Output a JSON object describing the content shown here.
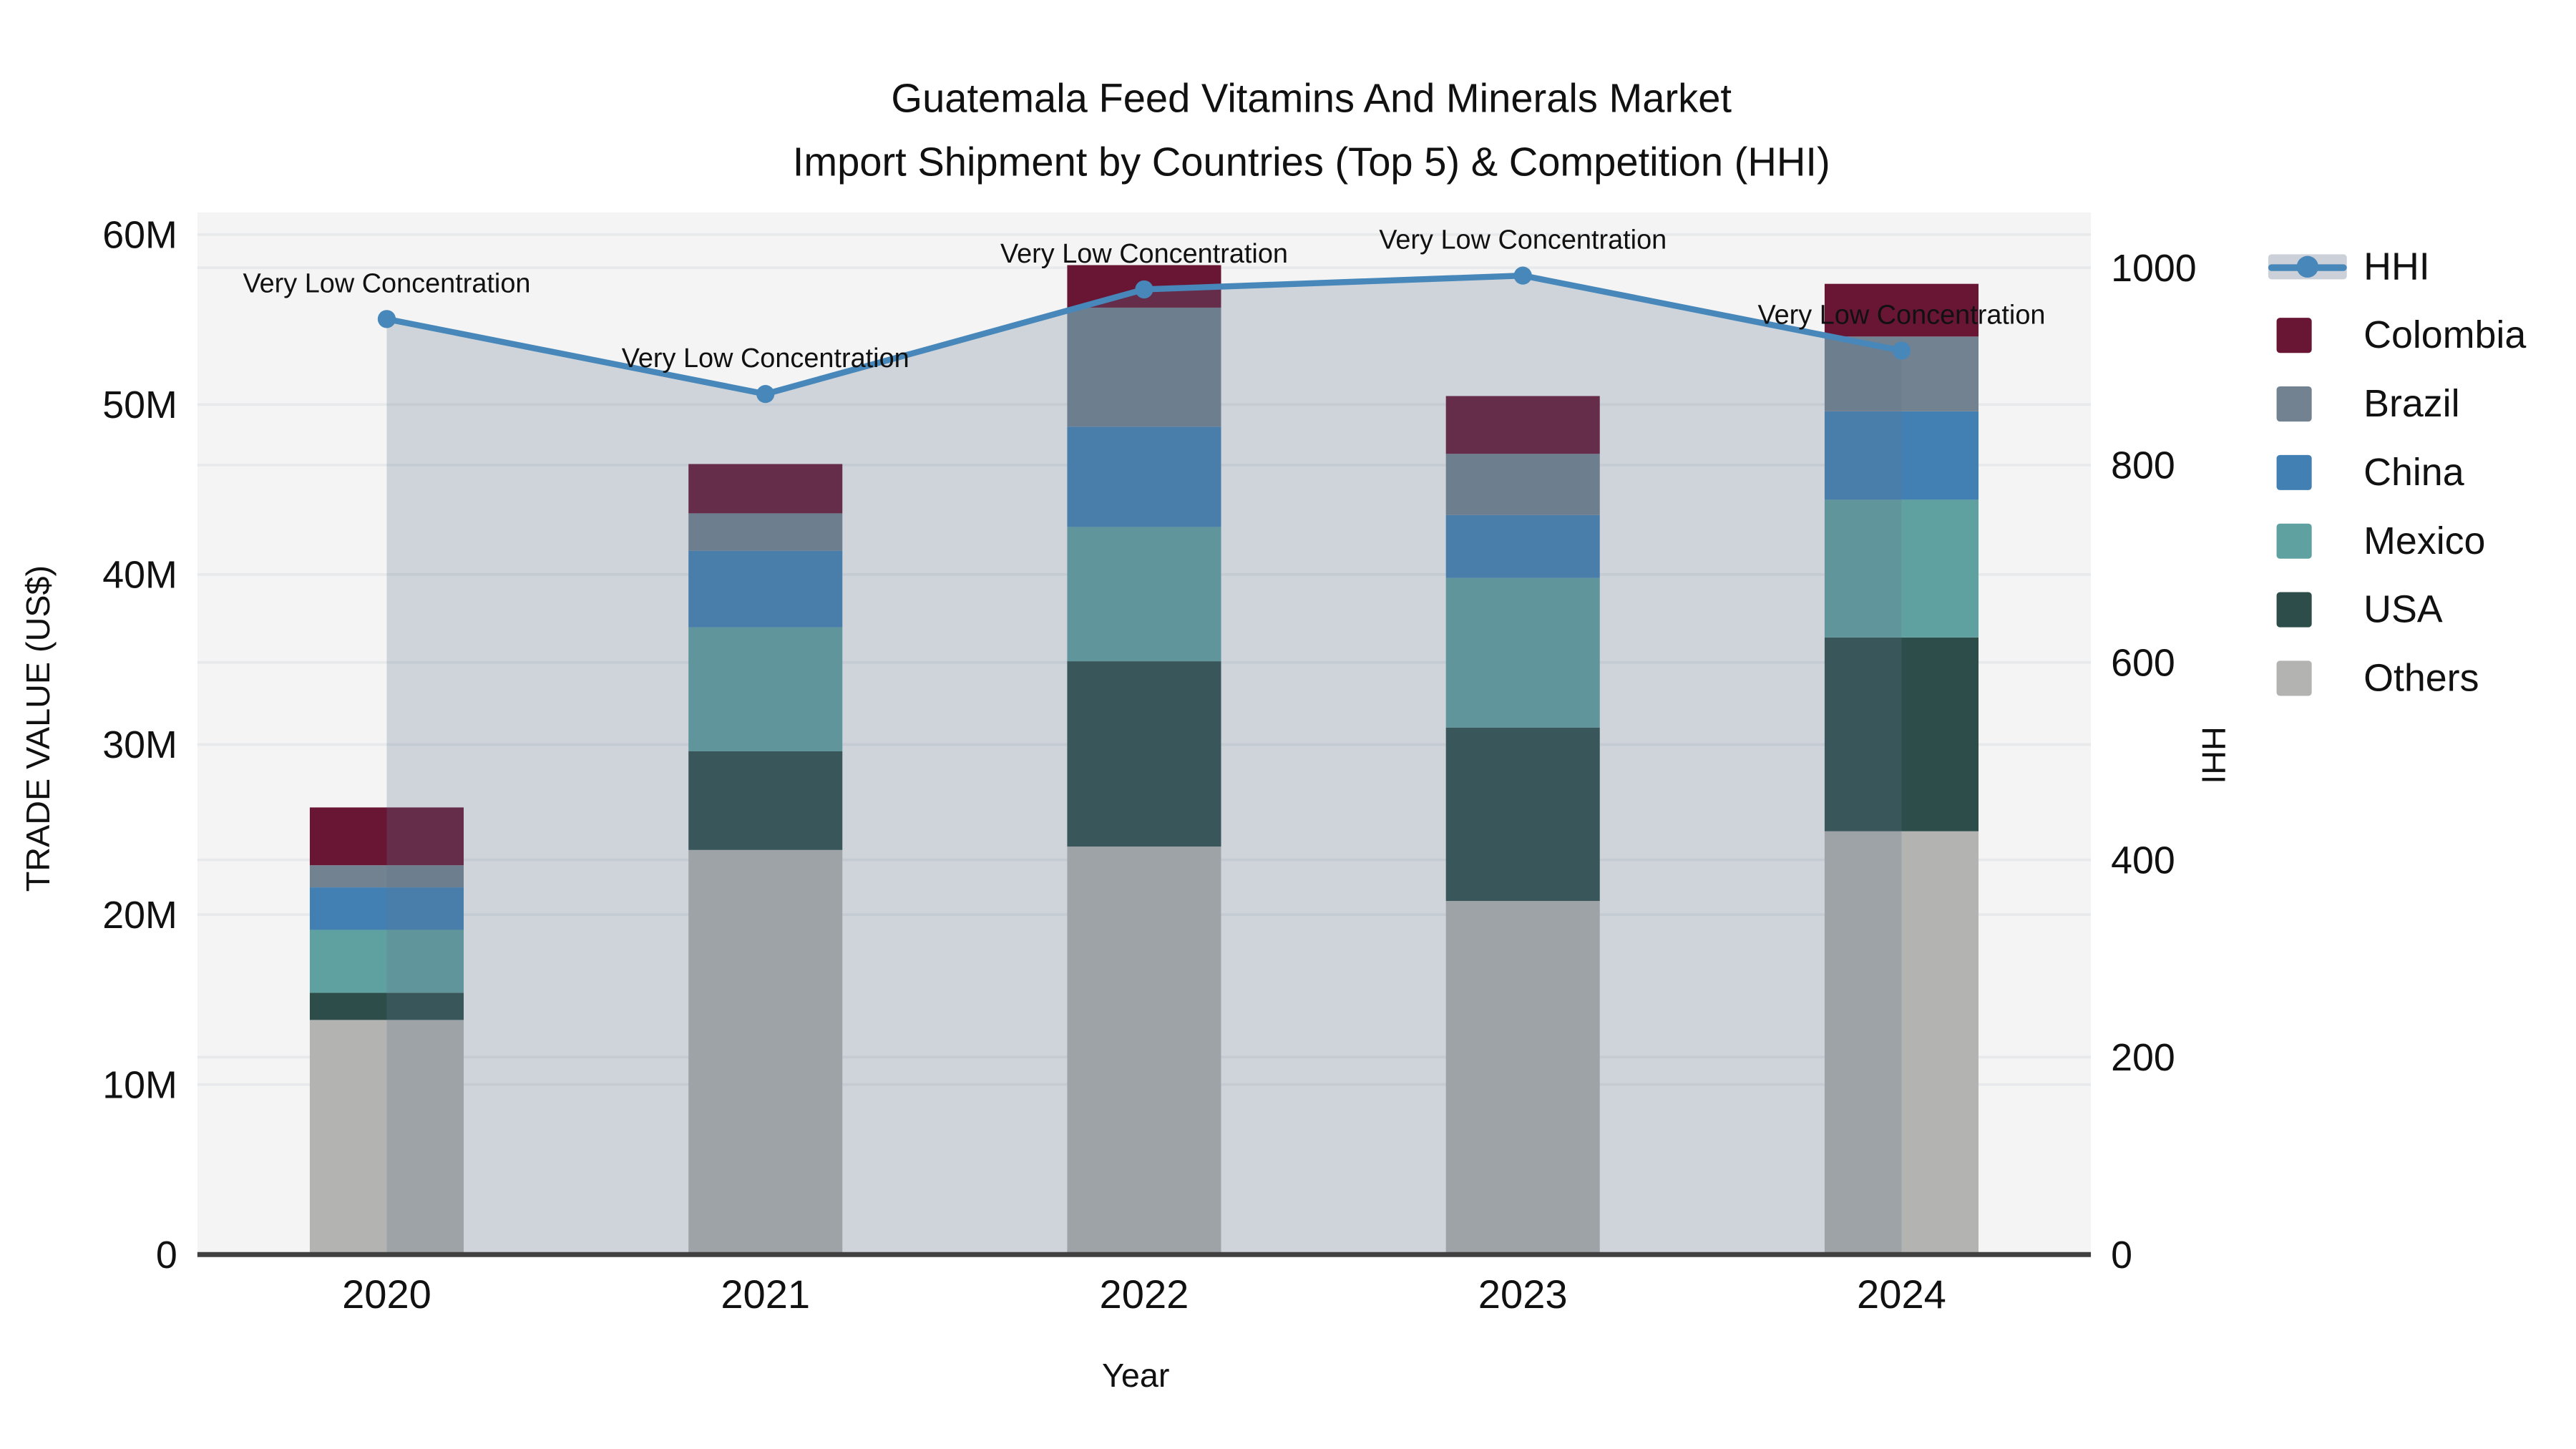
{
  "title": {
    "line1": "Guatemala Feed Vitamins And Minerals Market",
    "line2": "Import Shipment by Countries (Top 5) & Competition (HHI)"
  },
  "axes": {
    "left": {
      "title": "TRADE VALUE (US$)",
      "tick_values": [
        0,
        10,
        20,
        30,
        40,
        50,
        60
      ],
      "tick_labels": [
        "0",
        "10M",
        "20M",
        "30M",
        "40M",
        "50M",
        "60M"
      ],
      "max": 61.3
    },
    "right": {
      "title": "HHI",
      "tick_values": [
        0,
        200,
        400,
        600,
        800,
        1000
      ],
      "tick_labels": [
        "0",
        "200",
        "400",
        "600",
        "800",
        "1000"
      ],
      "max": 1056
    },
    "x": {
      "title": "Year",
      "categories": [
        "2020",
        "2021",
        "2022",
        "2023",
        "2024"
      ]
    }
  },
  "legend": {
    "items": [
      {
        "label": "HHI",
        "type": "line",
        "color": "#4787ba",
        "band": "#ccd1d9"
      },
      {
        "label": "Colombia",
        "type": "swatch",
        "color": "#691634"
      },
      {
        "label": "Brazil",
        "type": "swatch",
        "color": "#728291"
      },
      {
        "label": "China",
        "type": "swatch",
        "color": "#4280b4"
      },
      {
        "label": "Mexico",
        "type": "swatch",
        "color": "#5fa1a1"
      },
      {
        "label": "USA",
        "type": "swatch",
        "color": "#2d4d4a"
      },
      {
        "label": "Others",
        "type": "swatch",
        "color": "#b3b3b1"
      }
    ]
  },
  "chart_data": {
    "type": "bar",
    "subtype": "stacked-bars-with-line",
    "title": "Guatemala Feed Vitamins And Minerals Market Import Shipment by Countries (Top 5) & Competition (HHI)",
    "xlabel": "Year",
    "ylabel_left": "TRADE VALUE (US$)",
    "ylabel_right": "HHI",
    "categories": [
      "2020",
      "2021",
      "2022",
      "2023",
      "2024"
    ],
    "bar_unit": "M US$",
    "stack_order_bottom_to_top": [
      "Others",
      "USA",
      "Mexico",
      "China",
      "Brazil",
      "Colombia"
    ],
    "series": [
      {
        "name": "Others",
        "color": "#b3b3b1",
        "values": [
          13.8,
          23.8,
          24.0,
          20.8,
          24.9
        ]
      },
      {
        "name": "USA",
        "color": "#2d4d4a",
        "values": [
          1.6,
          5.8,
          10.9,
          10.2,
          11.4
        ]
      },
      {
        "name": "Mexico",
        "color": "#5fa1a1",
        "values": [
          3.7,
          7.3,
          7.9,
          8.8,
          8.1
        ]
      },
      {
        "name": "China",
        "color": "#4280b4",
        "values": [
          2.5,
          4.5,
          5.9,
          3.7,
          5.2
        ]
      },
      {
        "name": "Brazil",
        "color": "#728291",
        "values": [
          1.3,
          2.2,
          7.0,
          3.6,
          4.4
        ]
      },
      {
        "name": "Colombia",
        "color": "#691634",
        "values": [
          3.4,
          2.9,
          2.5,
          3.4,
          3.1
        ]
      }
    ],
    "bar_totals": [
      26.3,
      46.5,
      58.2,
      50.5,
      57.1
    ],
    "line_series": {
      "name": "HHI",
      "axis": "right",
      "color": "#4787ba",
      "fill_to_zero": true,
      "fill_color": "rgba(95,115,140,0.25)",
      "values": [
        948,
        872,
        978,
        992,
        916
      ]
    },
    "annotations": [
      {
        "x": "2020",
        "text": "Very Low Concentration"
      },
      {
        "x": "2021",
        "text": "Very Low Concentration"
      },
      {
        "x": "2022",
        "text": "Very Low Concentration"
      },
      {
        "x": "2023",
        "text": "Very Low Concentration"
      },
      {
        "x": "2024",
        "text": "Very Low Concentration"
      }
    ],
    "ylim_left": [
      0,
      61.3
    ],
    "ylim_right": [
      0,
      1056
    ],
    "grid": "both-axes-horizontal",
    "legend_position": "right",
    "plot_bg": "#f4f4f5",
    "gridline_color": "#e7e9eb",
    "axisline_color": "#404040"
  }
}
